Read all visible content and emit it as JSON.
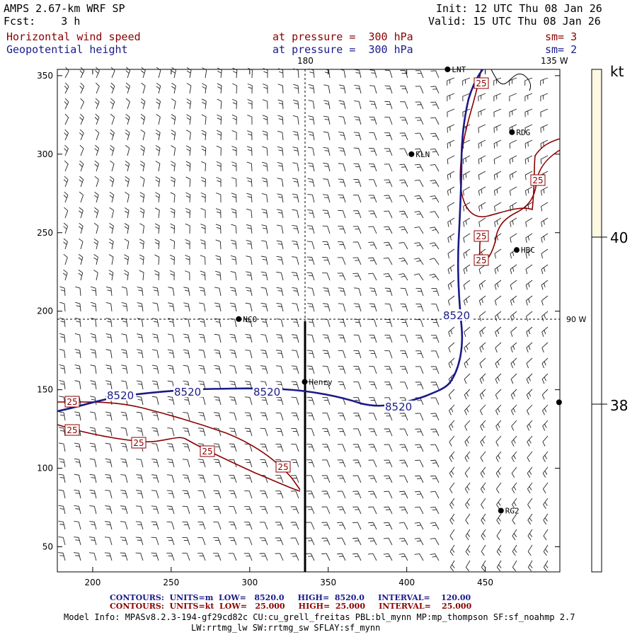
{
  "header": {
    "model": "AMPS 2.67-km WRF SP",
    "forecast": "Fcst:    3 h",
    "init": "Init: 12 UTC Thu 08 Jan 26",
    "valid": "Valid: 15 UTC Thu 08 Jan 26"
  },
  "fields": [
    {
      "name": "Horizontal wind speed",
      "level": "at pressure =  300 hPa",
      "smooth": "sm= 3"
    },
    {
      "name": "Geopotential height",
      "level": "at pressure =  300 hPa",
      "smooth": "sm= 2"
    }
  ],
  "map": {
    "x_ticks": [
      "200",
      "250",
      "300",
      "350",
      "400",
      "450"
    ],
    "y_ticks": [
      "350",
      "300",
      "250",
      "200",
      "150",
      "100",
      "50"
    ],
    "meridian_label": "180",
    "meridian_label_right": "135 W",
    "parallel_label": "90 W",
    "stations": [
      {
        "name": "LNT",
        "x": 426,
        "y": 354
      },
      {
        "name": "RDG",
        "x": 467,
        "y": 314
      },
      {
        "name": "KLN",
        "x": 403,
        "y": 300
      },
      {
        "name": "HBC",
        "x": 470,
        "y": 239
      },
      {
        "name": "NCO",
        "x": 293,
        "y": 195
      },
      {
        "name": "Henry",
        "x": 335,
        "y": 155
      },
      {
        "name": "RG2",
        "x": 460,
        "y": 73
      },
      {
        "name": "",
        "x": 497,
        "y": 142
      }
    ],
    "height_contour_label": "8520",
    "speed_contour_label": "25"
  },
  "colorbar": {
    "unit": "kt",
    "labels": [
      "40",
      "38"
    ],
    "fill_color": "#fdf8e1"
  },
  "footer": {
    "contours_height": "CONTOURS:  UNITS=m  LOW=   8520.0     HIGH=  8520.0     INTERVAL=    120.00",
    "contours_speed": "CONTOURS:  UNITS=kt  LOW=   25.000     HIGH=  25.000     INTERVAL=    25.000",
    "model_info": "Model Info: MPASv8.2.3-194-gf29cd82c CU:cu_grell_freitas PBL:bl_mynn MP:mp_thompson SF:sf_noahmp 2.7",
    "model_info2": "LW:rrtmg_lw SW:rrtmg_sw SFLAY:sf_mynn"
  },
  "colors": {
    "height_contour": "#1a1a8a",
    "speed_contour": "#8b0000"
  }
}
